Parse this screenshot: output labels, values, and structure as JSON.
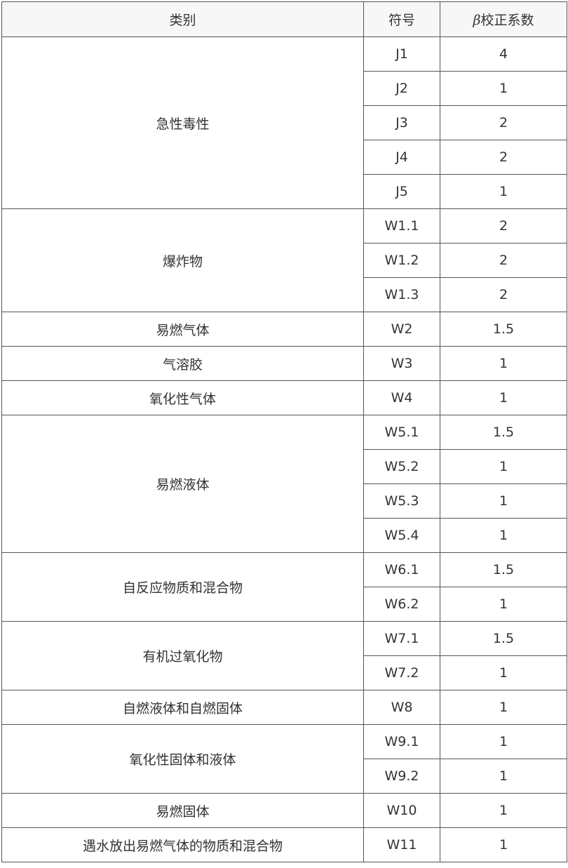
{
  "table": {
    "headers": {
      "category": "类别",
      "symbol": "符号",
      "beta_symbol": "β",
      "coef": "校正系数"
    },
    "groups": [
      {
        "category": "急性毒性",
        "rows": [
          {
            "symbol": "J1",
            "beta": "4"
          },
          {
            "symbol": "J2",
            "beta": "1"
          },
          {
            "symbol": "J3",
            "beta": "2"
          },
          {
            "symbol": "J4",
            "beta": "2"
          },
          {
            "symbol": "J5",
            "beta": "1"
          }
        ]
      },
      {
        "category": "爆炸物",
        "rows": [
          {
            "symbol": "W1.1",
            "beta": "2"
          },
          {
            "symbol": "W1.2",
            "beta": "2"
          },
          {
            "symbol": "W1.3",
            "beta": "2"
          }
        ]
      },
      {
        "category": "易燃气体",
        "rows": [
          {
            "symbol": "W2",
            "beta": "1.5"
          }
        ]
      },
      {
        "category": "气溶胶",
        "rows": [
          {
            "symbol": "W3",
            "beta": "1"
          }
        ]
      },
      {
        "category": "氧化性气体",
        "rows": [
          {
            "symbol": "W4",
            "beta": "1"
          }
        ]
      },
      {
        "category": "易燃液体",
        "rows": [
          {
            "symbol": "W5.1",
            "beta": "1.5"
          },
          {
            "symbol": "W5.2",
            "beta": "1"
          },
          {
            "symbol": "W5.3",
            "beta": "1"
          },
          {
            "symbol": "W5.4",
            "beta": "1"
          }
        ]
      },
      {
        "category": "自反应物质和混合物",
        "rows": [
          {
            "symbol": "W6.1",
            "beta": "1.5"
          },
          {
            "symbol": "W6.2",
            "beta": "1"
          }
        ]
      },
      {
        "category": "有机过氧化物",
        "rows": [
          {
            "symbol": "W7.1",
            "beta": "1.5"
          },
          {
            "symbol": "W7.2",
            "beta": "1"
          }
        ]
      },
      {
        "category": "自燃液体和自燃固体",
        "rows": [
          {
            "symbol": "W8",
            "beta": "1"
          }
        ]
      },
      {
        "category": "氧化性固体和液体",
        "rows": [
          {
            "symbol": "W9.1",
            "beta": "1"
          },
          {
            "symbol": "W9.2",
            "beta": "1"
          }
        ]
      },
      {
        "category": "易燃固体",
        "rows": [
          {
            "symbol": "W10",
            "beta": "1"
          }
        ]
      },
      {
        "category": "遇水放出易燃气体的物质和混合物",
        "rows": [
          {
            "symbol": "W11",
            "beta": "1"
          }
        ]
      }
    ]
  }
}
